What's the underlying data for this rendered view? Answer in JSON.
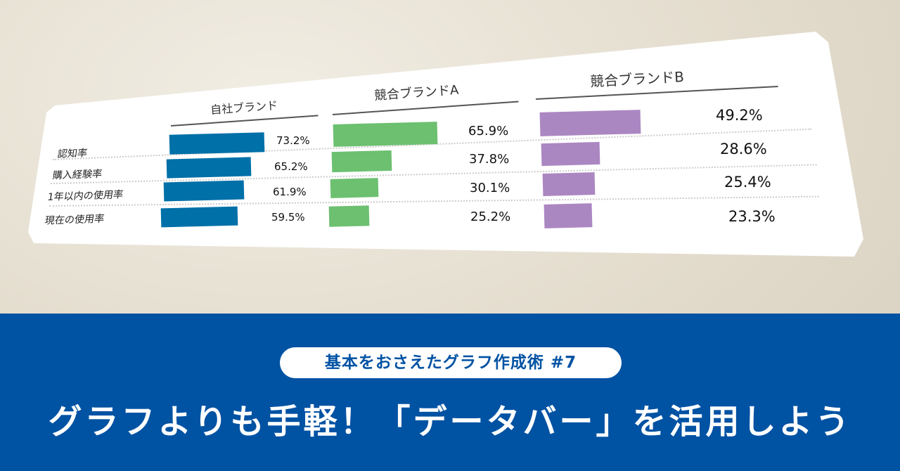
{
  "chart_data": {
    "type": "bar",
    "categories": [
      "認知率",
      "購入経験率",
      "1年以内の使用率",
      "現在の使用率"
    ],
    "series": [
      {
        "name": "自社ブランド",
        "values": [
          73.2,
          65.2,
          61.9,
          59.5
        ],
        "labels": [
          "73.2%",
          "65.2%",
          "61.9%",
          "59.5%"
        ],
        "color": "#0070a8"
      },
      {
        "name": "競合ブランドA",
        "values": [
          65.9,
          37.8,
          30.1,
          25.2
        ],
        "labels": [
          "65.9%",
          "37.8%",
          "30.1%",
          "25.2%"
        ],
        "color": "#6cc070"
      },
      {
        "name": "競合ブランドB",
        "values": [
          49.2,
          28.6,
          25.4,
          23.3
        ],
        "labels": [
          "49.2%",
          "28.6%",
          "25.4%",
          "23.3%"
        ],
        "color": "#ab87c2"
      }
    ],
    "orientation": "horizontal",
    "grid": "dotted row separators"
  },
  "banner": {
    "series_label": "基本をおさえたグラフ作成術 #7",
    "title": "グラフよりも手軽！「データバー」を活用しよう",
    "background": "#0052a3"
  }
}
